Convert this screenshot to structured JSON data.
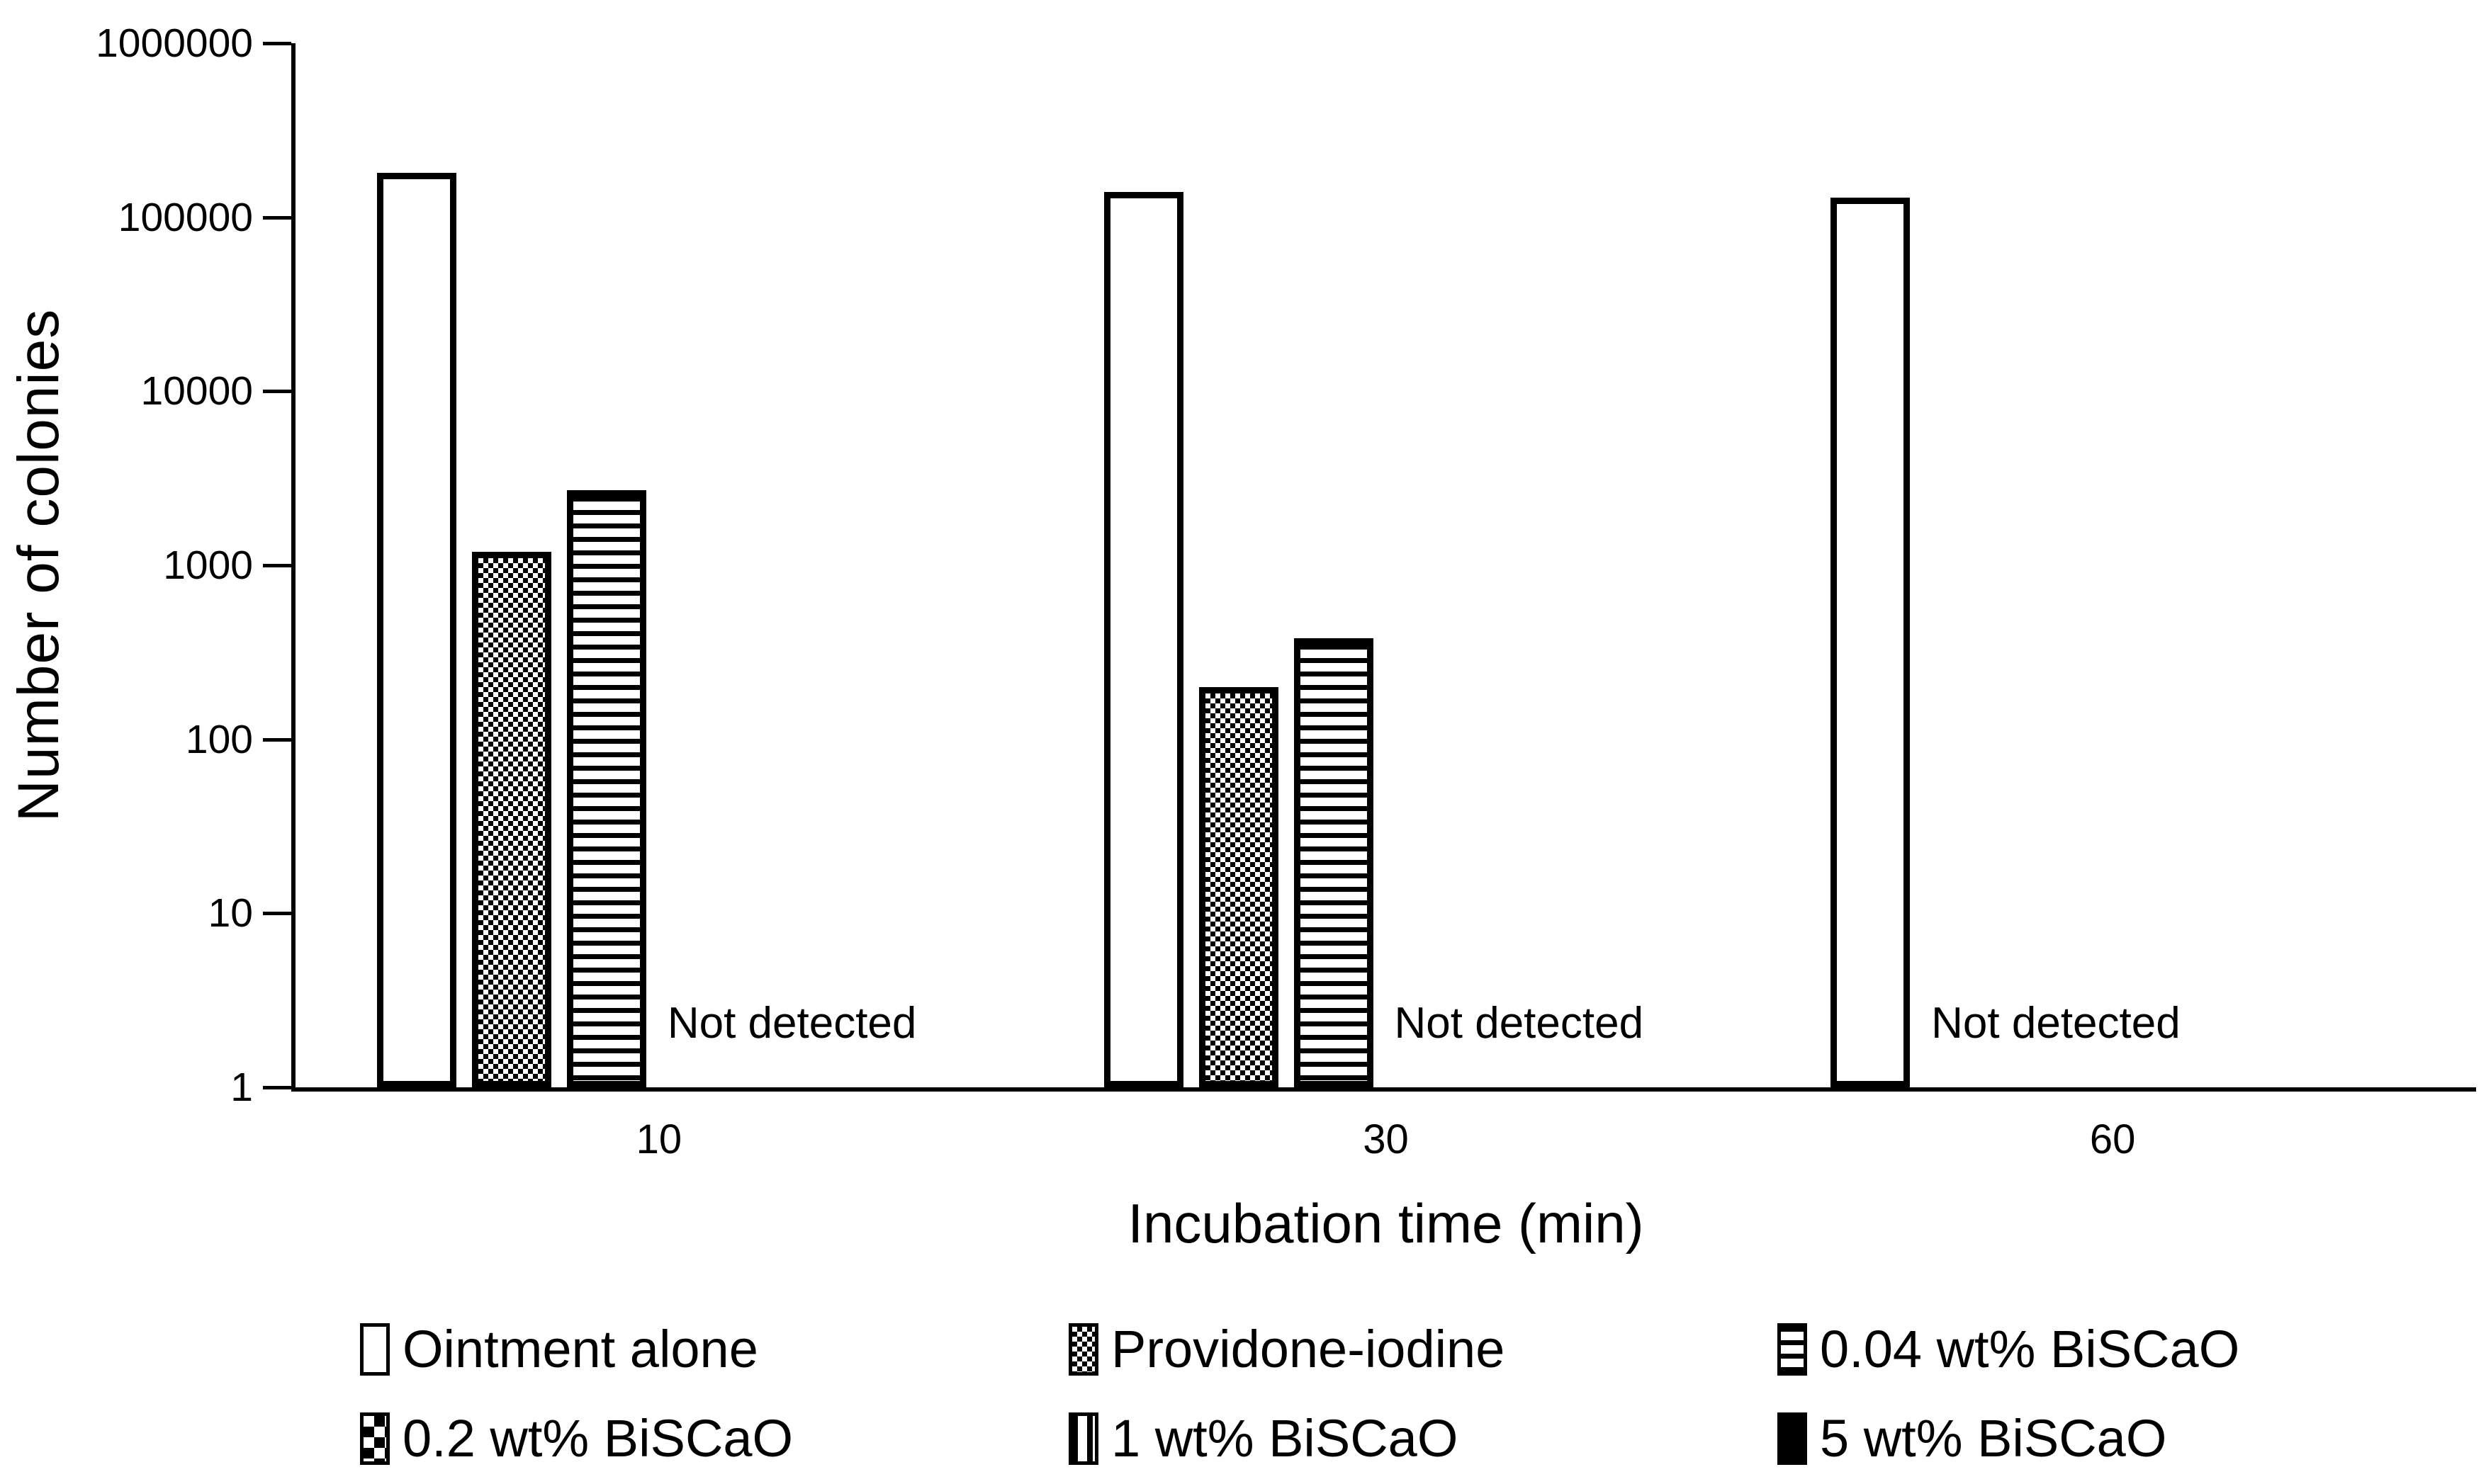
{
  "figure": {
    "background": "#ffffff",
    "ink": "#000000"
  },
  "chart_data": {
    "type": "bar",
    "title": "",
    "xlabel": "Incubation time (min)",
    "ylabel": "Number of colonies",
    "y_scale": "log10",
    "ylim": [
      1,
      1000000
    ],
    "y_tick_labels": [
      "1000000",
      "100000",
      "10000",
      "1000",
      "100",
      "10",
      "1"
    ],
    "x_tick_labels": [
      "10",
      "30",
      "60"
    ],
    "categories": [
      "10",
      "30",
      "60"
    ],
    "grid": false,
    "legend_position": "bottom (2 rows x 3 columns)",
    "series": [
      {
        "name": "Ointment alone",
        "pattern": "plain-white",
        "values": [
          180000,
          140000,
          130000
        ]
      },
      {
        "name": "Providone-iodine",
        "pattern": "fine-checker",
        "values": [
          1200,
          200,
          null
        ]
      },
      {
        "name": "0.04 wt% BiSCaO",
        "pattern": "horizontal-stripes",
        "values": [
          2700,
          380,
          null
        ]
      },
      {
        "name": "0.2 wt% BiSCaO",
        "pattern": "coarse-checker",
        "values": [
          null,
          null,
          null
        ]
      },
      {
        "name": "1 wt% BiSCaO",
        "pattern": "vertical-stripes",
        "values": [
          null,
          null,
          null
        ]
      },
      {
        "name": "5 wt% BiSCaO",
        "pattern": "solid-black",
        "values": [
          null,
          null,
          null
        ]
      }
    ],
    "annotations": {
      "not_detected_label": "Not detected",
      "applies_to_categories": [
        "10",
        "30",
        "60"
      ]
    }
  }
}
